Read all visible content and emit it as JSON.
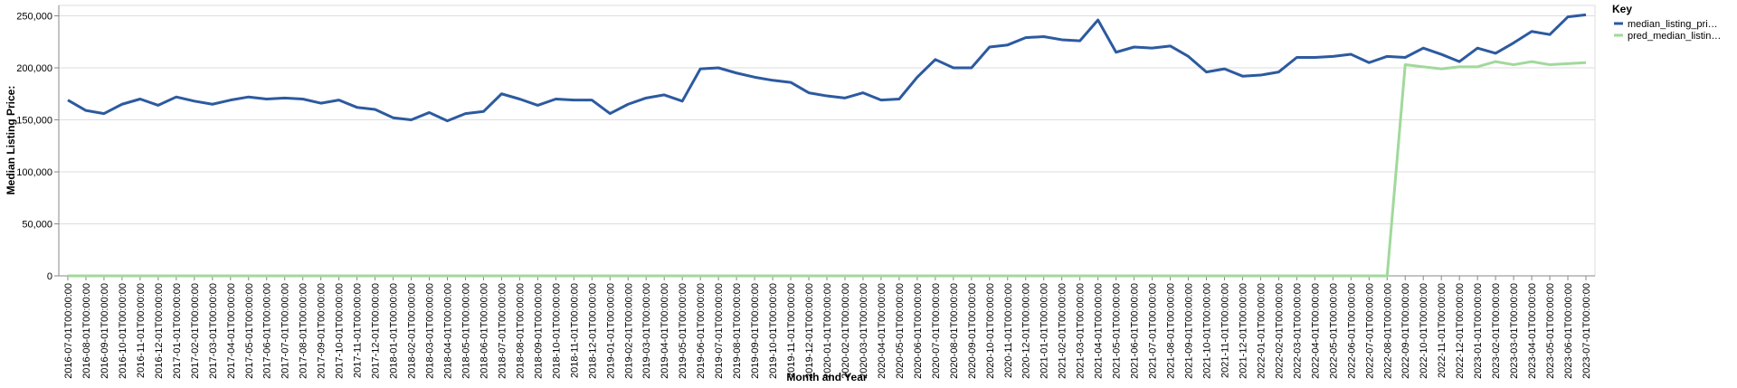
{
  "chart_data": {
    "type": "line",
    "x_label": "Month and Year",
    "y_label": "Median Listing Price:",
    "legend_title": "Key",
    "legend": "right",
    "grid": true,
    "categories": [
      "2016-07-01T00:00:00",
      "2016-08-01T00:00:00",
      "2016-09-01T00:00:00",
      "2016-10-01T00:00:00",
      "2016-11-01T00:00:00",
      "2016-12-01T00:00:00",
      "2017-01-01T00:00:00",
      "2017-02-01T00:00:00",
      "2017-03-01T00:00:00",
      "2017-04-01T00:00:00",
      "2017-05-01T00:00:00",
      "2017-06-01T00:00:00",
      "2017-07-01T00:00:00",
      "2017-08-01T00:00:00",
      "2017-09-01T00:00:00",
      "2017-10-01T00:00:00",
      "2017-11-01T00:00:00",
      "2017-12-01T00:00:00",
      "2018-01-01T00:00:00",
      "2018-02-01T00:00:00",
      "2018-03-01T00:00:00",
      "2018-04-01T00:00:00",
      "2018-05-01T00:00:00",
      "2018-06-01T00:00:00",
      "2018-07-01T00:00:00",
      "2018-08-01T00:00:00",
      "2018-09-01T00:00:00",
      "2018-10-01T00:00:00",
      "2018-11-01T00:00:00",
      "2018-12-01T00:00:00",
      "2019-01-01T00:00:00",
      "2019-02-01T00:00:00",
      "2019-03-01T00:00:00",
      "2019-04-01T00:00:00",
      "2019-05-01T00:00:00",
      "2019-06-01T00:00:00",
      "2019-07-01T00:00:00",
      "2019-08-01T00:00:00",
      "2019-09-01T00:00:00",
      "2019-10-01T00:00:00",
      "2019-11-01T00:00:00",
      "2019-12-01T00:00:00",
      "2020-01-01T00:00:00",
      "2020-02-01T00:00:00",
      "2020-03-01T00:00:00",
      "2020-04-01T00:00:00",
      "2020-05-01T00:00:00",
      "2020-06-01T00:00:00",
      "2020-07-01T00:00:00",
      "2020-08-01T00:00:00",
      "2020-09-01T00:00:00",
      "2020-10-01T00:00:00",
      "2020-11-01T00:00:00",
      "2020-12-01T00:00:00",
      "2021-01-01T00:00:00",
      "2021-02-01T00:00:00",
      "2021-03-01T00:00:00",
      "2021-04-01T00:00:00",
      "2021-05-01T00:00:00",
      "2021-06-01T00:00:00",
      "2021-07-01T00:00:00",
      "2021-08-01T00:00:00",
      "2021-09-01T00:00:00",
      "2021-10-01T00:00:00",
      "2021-11-01T00:00:00",
      "2021-12-01T00:00:00",
      "2022-01-01T00:00:00",
      "2022-02-01T00:00:00",
      "2022-03-01T00:00:00",
      "2022-04-01T00:00:00",
      "2022-05-01T00:00:00",
      "2022-06-01T00:00:00",
      "2022-07-01T00:00:00",
      "2022-08-01T00:00:00",
      "2022-09-01T00:00:00",
      "2022-10-01T00:00:00",
      "2022-11-01T00:00:00",
      "2022-12-01T00:00:00",
      "2023-01-01T00:00:00",
      "2023-02-01T00:00:00",
      "2023-03-01T00:00:00",
      "2023-04-01T00:00:00",
      "2023-05-01T00:00:00",
      "2023-06-01T00:00:00",
      "2023-07-01T00:00:00"
    ],
    "series": [
      {
        "name": "median_listing_pri…",
        "color": "#2c5aa0",
        "values": [
          169000,
          159000,
          156000,
          165000,
          170000,
          164000,
          172000,
          168000,
          165000,
          169000,
          172000,
          170000,
          171000,
          170000,
          166000,
          169000,
          162000,
          160000,
          152000,
          150000,
          157000,
          149000,
          156000,
          158000,
          175000,
          170000,
          164000,
          170000,
          169000,
          169000,
          156000,
          165000,
          171000,
          174000,
          168000,
          199000,
          200000,
          195000,
          191000,
          188000,
          186000,
          176000,
          173000,
          171000,
          176000,
          169000,
          170000,
          191000,
          208000,
          200000,
          200000,
          220000,
          222000,
          229000,
          230000,
          227000,
          226000,
          246000,
          215000,
          220000,
          219000,
          221000,
          211000,
          196000,
          199000,
          192000,
          193000,
          196000,
          210000,
          210000,
          211000,
          213000,
          205000,
          211000,
          210000,
          219000,
          213000,
          206000,
          219000,
          214000,
          224000,
          235000,
          232000,
          249000,
          251000
        ]
      },
      {
        "name": "pred_median_listin…",
        "color": "#a1d99b",
        "values": [
          0,
          0,
          0,
          0,
          0,
          0,
          0,
          0,
          0,
          0,
          0,
          0,
          0,
          0,
          0,
          0,
          0,
          0,
          0,
          0,
          0,
          0,
          0,
          0,
          0,
          0,
          0,
          0,
          0,
          0,
          0,
          0,
          0,
          0,
          0,
          0,
          0,
          0,
          0,
          0,
          0,
          0,
          0,
          0,
          0,
          0,
          0,
          0,
          0,
          0,
          0,
          0,
          0,
          0,
          0,
          0,
          0,
          0,
          0,
          0,
          0,
          0,
          0,
          0,
          0,
          0,
          0,
          0,
          0,
          0,
          0,
          0,
          0,
          0,
          203000,
          201000,
          199000,
          201000,
          201000,
          206000,
          203000,
          206000,
          203000,
          204000,
          205000
        ]
      }
    ],
    "ylim": [
      0,
      260000
    ],
    "yticks": [
      0,
      {
        "value": 50000,
        "label": "50,000"
      },
      {
        "value": 100000,
        "label": "100,000"
      },
      {
        "value": 150000,
        "label": "150,000"
      },
      {
        "value": 200000,
        "label": "200,000"
      },
      {
        "value": 250000,
        "label": "250,000"
      }
    ]
  }
}
